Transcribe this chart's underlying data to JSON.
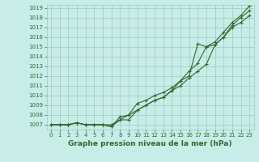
{
  "xlabel": "Graphe pression niveau de la mer (hPa)",
  "x": [
    0,
    1,
    2,
    3,
    4,
    5,
    6,
    7,
    8,
    9,
    10,
    11,
    12,
    13,
    14,
    15,
    16,
    17,
    18,
    19,
    20,
    21,
    22,
    23
  ],
  "line1": [
    1007,
    1007,
    1007,
    1007.2,
    1007,
    1007,
    1007,
    1007,
    1007.5,
    1007.5,
    1008.5,
    1009,
    1009.5,
    1009.8,
    1010.5,
    1011,
    1011.8,
    1012.5,
    1013.2,
    1015.2,
    1016,
    1017.2,
    1018,
    1018.7
  ],
  "line2": [
    1007,
    1007,
    1007,
    1007.2,
    1007,
    1007,
    1007,
    1006.8,
    1007.5,
    1008,
    1009.2,
    1009.5,
    1010,
    1010.3,
    1010.8,
    1011.5,
    1012.5,
    1013.3,
    1015,
    1015.5,
    1016.5,
    1017.5,
    1018.2,
    1019.2
  ],
  "line3": [
    1007,
    1007,
    1007,
    1007.2,
    1007,
    1007,
    1007,
    1006.8,
    1007.8,
    1008,
    1008.5,
    1009,
    1009.5,
    1009.8,
    1010.5,
    1011.5,
    1012,
    1015.3,
    1015,
    1015.2,
    1016,
    1017,
    1017.5,
    1018.2
  ],
  "line_color": "#2d6a2d",
  "bg_color": "#c8ece8",
  "grid_color": "#a0c8c0",
  "ylim_min": 1006.5,
  "ylim_max": 1019.3,
  "yticks": [
    1007,
    1008,
    1009,
    1010,
    1011,
    1012,
    1013,
    1014,
    1015,
    1016,
    1017,
    1018,
    1019
  ],
  "xticks": [
    0,
    1,
    2,
    3,
    4,
    5,
    6,
    7,
    8,
    9,
    10,
    11,
    12,
    13,
    14,
    15,
    16,
    17,
    18,
    19,
    20,
    21,
    22,
    23
  ],
  "marker": "+",
  "linewidth": 0.8,
  "markersize": 3,
  "markeredgewidth": 0.8,
  "tick_fontsize": 5,
  "xlabel_fontsize": 6.5
}
